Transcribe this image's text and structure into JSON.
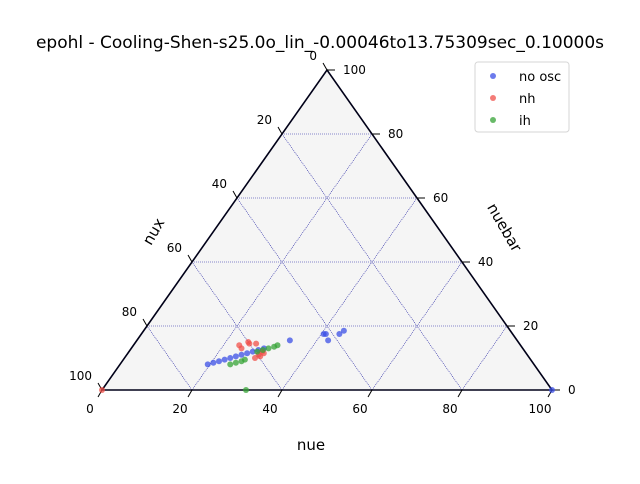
{
  "chart_data": {
    "type": "scatter",
    "projection": "ternary",
    "title": "epohl - Cooling-Shen-s25.0o_lin_-0.00046to13.75309sec_0.10000s",
    "axes": {
      "bottom": {
        "label": "nue",
        "ticks": [
          "0",
          "20",
          "40",
          "60",
          "80",
          "100"
        ],
        "range": [
          0,
          100
        ]
      },
      "left": {
        "label": "nux",
        "ticks": [
          "0",
          "20",
          "40",
          "60",
          "80",
          "100"
        ],
        "range": [
          0,
          100
        ]
      },
      "right": {
        "label": "nuebar",
        "ticks": [
          "0",
          "20",
          "40",
          "60",
          "80",
          "100"
        ],
        "range": [
          0,
          100
        ]
      }
    },
    "grid": true,
    "legend_position": "top-right",
    "series": [
      {
        "name": "no osc",
        "color": "#3b4fe6",
        "points": [
          {
            "nue": 40.5,
            "nuebar": 17.5
          },
          {
            "nue": 41.0,
            "nuebar": 17.5
          },
          {
            "nue": 44.0,
            "nuebar": 17.5
          },
          {
            "nue": 44.5,
            "nuebar": 18.5
          },
          {
            "nue": 42.5,
            "nuebar": 15.5
          },
          {
            "nue": 34.0,
            "nuebar": 15.5
          },
          {
            "nue": 100.0,
            "nuebar": 0.0
          },
          {
            "nue": 19.5,
            "nuebar": 8.0
          },
          {
            "nue": 20.5,
            "nuebar": 8.5
          },
          {
            "nue": 21.5,
            "nuebar": 9.0
          },
          {
            "nue": 22.5,
            "nuebar": 9.5
          },
          {
            "nue": 23.5,
            "nuebar": 10.0
          },
          {
            "nue": 24.5,
            "nuebar": 10.5
          },
          {
            "nue": 25.5,
            "nuebar": 11.0
          },
          {
            "nue": 26.5,
            "nuebar": 11.5
          },
          {
            "nue": 27.5,
            "nuebar": 12.0
          },
          {
            "nue": 28.5,
            "nuebar": 12.5
          },
          {
            "nue": 29.5,
            "nuebar": 13.0
          }
        ]
      },
      {
        "name": "nh",
        "color": "#f0504a",
        "points": [
          {
            "nue": 0.0,
            "nuebar": 0.0
          },
          {
            "nue": 23.5,
            "nuebar": 14.0
          },
          {
            "nue": 24.5,
            "nuebar": 13.0
          },
          {
            "nue": 25.5,
            "nuebar": 14.5
          },
          {
            "nue": 25.0,
            "nuebar": 15.0
          },
          {
            "nue": 27.0,
            "nuebar": 14.5
          },
          {
            "nue": 29.0,
            "nuebar": 10.0
          },
          {
            "nue": 29.3,
            "nuebar": 11.0
          },
          {
            "nue": 29.6,
            "nuebar": 12.0
          },
          {
            "nue": 29.9,
            "nuebar": 10.5
          },
          {
            "nue": 30.2,
            "nuebar": 11.5
          }
        ]
      },
      {
        "name": "ih",
        "color": "#36a336",
        "points": [
          {
            "nue": 32.0,
            "nuebar": 0.0
          },
          {
            "nue": 24.5,
            "nuebar": 8.0
          },
          {
            "nue": 25.5,
            "nuebar": 8.5
          },
          {
            "nue": 26.5,
            "nuebar": 9.0
          },
          {
            "nue": 27.0,
            "nuebar": 9.5
          },
          {
            "nue": 28.5,
            "nuebar": 12.0
          },
          {
            "nue": 29.5,
            "nuebar": 12.5
          },
          {
            "nue": 30.5,
            "nuebar": 13.0
          },
          {
            "nue": 31.5,
            "nuebar": 13.5
          },
          {
            "nue": 32.0,
            "nuebar": 14.0
          }
        ]
      }
    ]
  }
}
